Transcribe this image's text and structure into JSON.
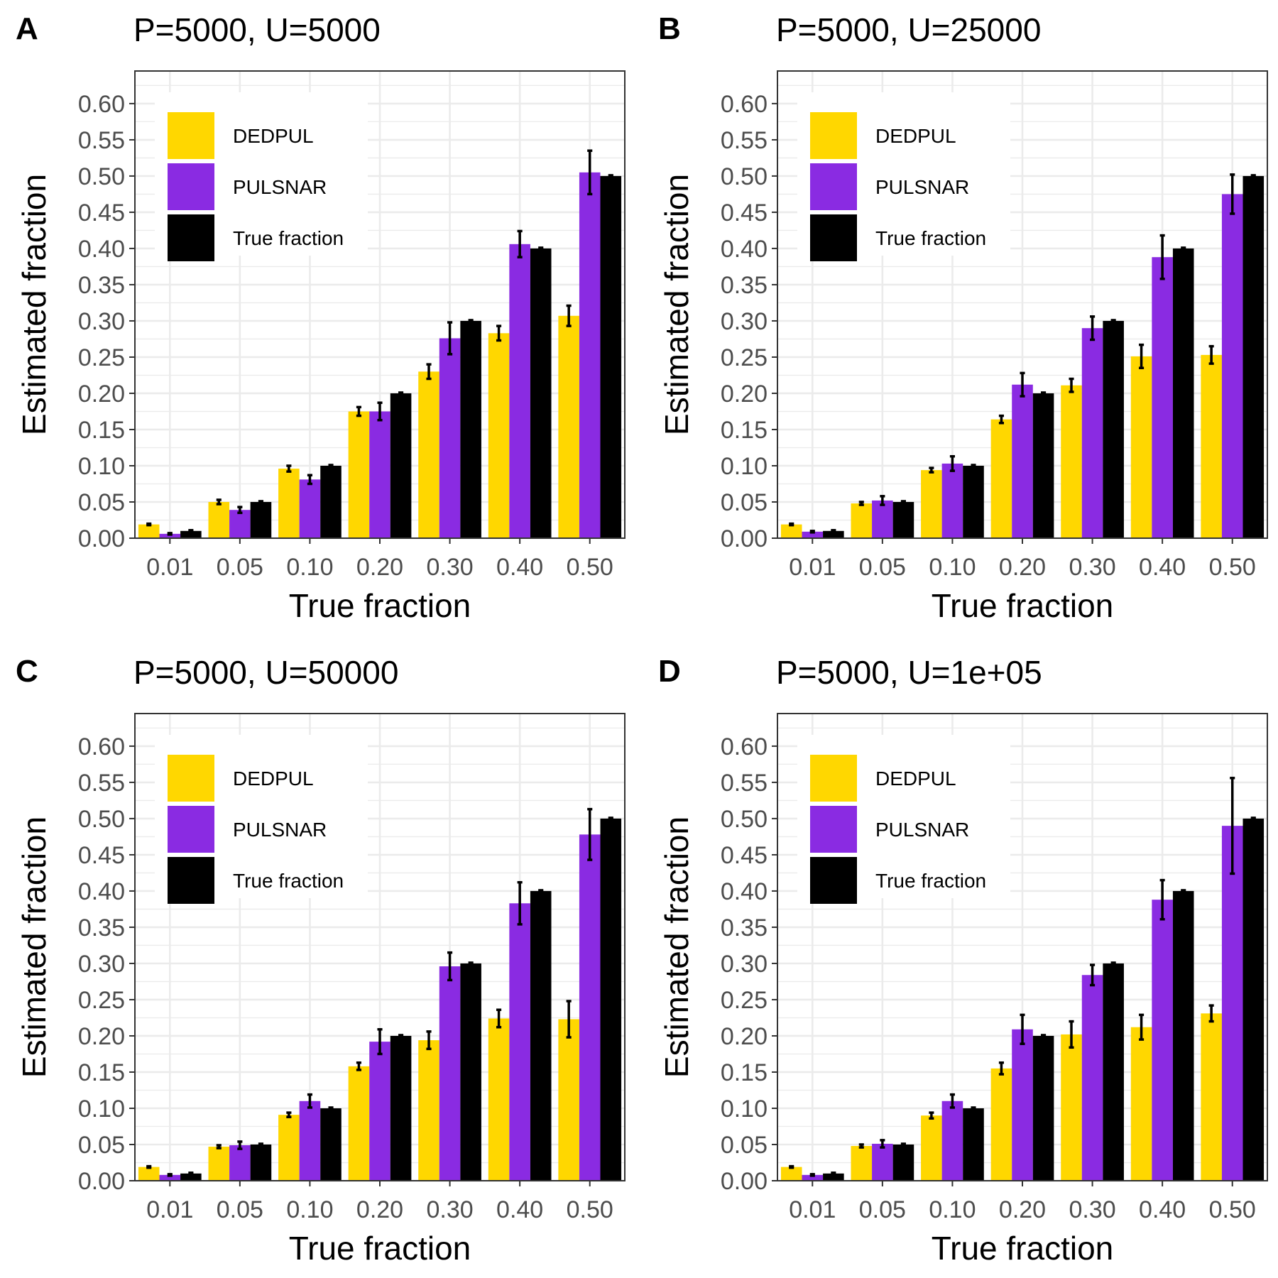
{
  "figure": {
    "colors": {
      "DEDPUL": "#ffd700",
      "PULSNAR": "#8a2be2",
      "True fraction": "#000000",
      "grid": "#ebebeb",
      "border": "#333333"
    },
    "legend_labels": [
      "DEDPUL",
      "PULSNAR",
      "True fraction"
    ]
  },
  "chart_data": [
    {
      "type": "bar",
      "panel": "A",
      "title": "P=5000, U=5000",
      "xlabel": "True fraction",
      "ylabel": "Estimated fraction",
      "categories": [
        "0.01",
        "0.05",
        "0.10",
        "0.20",
        "0.30",
        "0.40",
        "0.50"
      ],
      "yticks": [
        "0.00",
        "0.05",
        "0.10",
        "0.15",
        "0.20",
        "0.25",
        "0.30",
        "0.35",
        "0.40",
        "0.45",
        "0.50",
        "0.55",
        "0.60"
      ],
      "ylim": [
        0,
        0.645
      ],
      "grid": true,
      "legend": "top-left",
      "series": [
        {
          "name": "DEDPUL",
          "values": [
            0.019,
            0.05,
            0.096,
            0.175,
            0.23,
            0.283,
            0.307
          ],
          "errors": [
            0.001,
            0.003,
            0.004,
            0.006,
            0.01,
            0.01,
            0.014
          ]
        },
        {
          "name": "PULSNAR",
          "values": [
            0.006,
            0.039,
            0.081,
            0.175,
            0.276,
            0.406,
            0.505
          ],
          "errors": [
            0.001,
            0.004,
            0.006,
            0.012,
            0.022,
            0.018,
            0.03
          ]
        },
        {
          "name": "True fraction",
          "values": [
            0.01,
            0.05,
            0.1,
            0.2,
            0.3,
            0.4,
            0.5
          ],
          "errors": [
            0.001,
            0.001,
            0.001,
            0.001,
            0.001,
            0.001,
            0.001
          ]
        }
      ]
    },
    {
      "type": "bar",
      "panel": "B",
      "title": "P=5000, U=25000",
      "xlabel": "True fraction",
      "ylabel": "Estimated fraction",
      "categories": [
        "0.01",
        "0.05",
        "0.10",
        "0.20",
        "0.30",
        "0.40",
        "0.50"
      ],
      "yticks": [
        "0.00",
        "0.05",
        "0.10",
        "0.15",
        "0.20",
        "0.25",
        "0.30",
        "0.35",
        "0.40",
        "0.45",
        "0.50",
        "0.55",
        "0.60"
      ],
      "ylim": [
        0,
        0.645
      ],
      "grid": true,
      "legend": "top-left",
      "series": [
        {
          "name": "DEDPUL",
          "values": [
            0.019,
            0.048,
            0.094,
            0.164,
            0.211,
            0.251,
            0.253
          ],
          "errors": [
            0.001,
            0.002,
            0.003,
            0.005,
            0.009,
            0.016,
            0.012
          ]
        },
        {
          "name": "PULSNAR",
          "values": [
            0.009,
            0.052,
            0.103,
            0.212,
            0.29,
            0.388,
            0.475
          ],
          "errors": [
            0.001,
            0.006,
            0.01,
            0.016,
            0.016,
            0.03,
            0.027
          ]
        },
        {
          "name": "True fraction",
          "values": [
            0.01,
            0.05,
            0.1,
            0.2,
            0.3,
            0.4,
            0.5
          ],
          "errors": [
            0.001,
            0.001,
            0.001,
            0.001,
            0.001,
            0.001,
            0.001
          ]
        }
      ]
    },
    {
      "type": "bar",
      "panel": "C",
      "title": "P=5000, U=50000",
      "xlabel": "True fraction",
      "ylabel": "Estimated fraction",
      "categories": [
        "0.01",
        "0.05",
        "0.10",
        "0.20",
        "0.30",
        "0.40",
        "0.50"
      ],
      "yticks": [
        "0.00",
        "0.05",
        "0.10",
        "0.15",
        "0.20",
        "0.25",
        "0.30",
        "0.35",
        "0.40",
        "0.45",
        "0.50",
        "0.55",
        "0.60"
      ],
      "ylim": [
        0,
        0.645
      ],
      "grid": true,
      "legend": "top-left",
      "series": [
        {
          "name": "DEDPUL",
          "values": [
            0.019,
            0.047,
            0.091,
            0.158,
            0.194,
            0.224,
            0.223
          ],
          "errors": [
            0.001,
            0.002,
            0.003,
            0.005,
            0.012,
            0.012,
            0.025
          ]
        },
        {
          "name": "PULSNAR",
          "values": [
            0.008,
            0.049,
            0.11,
            0.192,
            0.296,
            0.383,
            0.478
          ],
          "errors": [
            0.001,
            0.005,
            0.009,
            0.017,
            0.019,
            0.029,
            0.035
          ]
        },
        {
          "name": "True fraction",
          "values": [
            0.01,
            0.05,
            0.1,
            0.2,
            0.3,
            0.4,
            0.5
          ],
          "errors": [
            0.001,
            0.001,
            0.001,
            0.001,
            0.001,
            0.001,
            0.001
          ]
        }
      ]
    },
    {
      "type": "bar",
      "panel": "D",
      "title": "P=5000, U=1e+05",
      "xlabel": "True fraction",
      "ylabel": "Estimated fraction",
      "categories": [
        "0.01",
        "0.05",
        "0.10",
        "0.20",
        "0.30",
        "0.40",
        "0.50"
      ],
      "yticks": [
        "0.00",
        "0.05",
        "0.10",
        "0.15",
        "0.20",
        "0.25",
        "0.30",
        "0.35",
        "0.40",
        "0.45",
        "0.50",
        "0.55",
        "0.60"
      ],
      "ylim": [
        0,
        0.645
      ],
      "grid": true,
      "legend": "top-left",
      "series": [
        {
          "name": "DEDPUL",
          "values": [
            0.019,
            0.048,
            0.09,
            0.155,
            0.202,
            0.212,
            0.231
          ],
          "errors": [
            0.001,
            0.002,
            0.004,
            0.008,
            0.018,
            0.017,
            0.011
          ]
        },
        {
          "name": "PULSNAR",
          "values": [
            0.008,
            0.051,
            0.11,
            0.209,
            0.284,
            0.388,
            0.49
          ],
          "errors": [
            0.001,
            0.005,
            0.009,
            0.02,
            0.014,
            0.027,
            0.066
          ]
        },
        {
          "name": "True fraction",
          "values": [
            0.01,
            0.05,
            0.1,
            0.2,
            0.3,
            0.4,
            0.5
          ],
          "errors": [
            0.001,
            0.001,
            0.001,
            0.001,
            0.001,
            0.001,
            0.001
          ]
        }
      ]
    }
  ]
}
